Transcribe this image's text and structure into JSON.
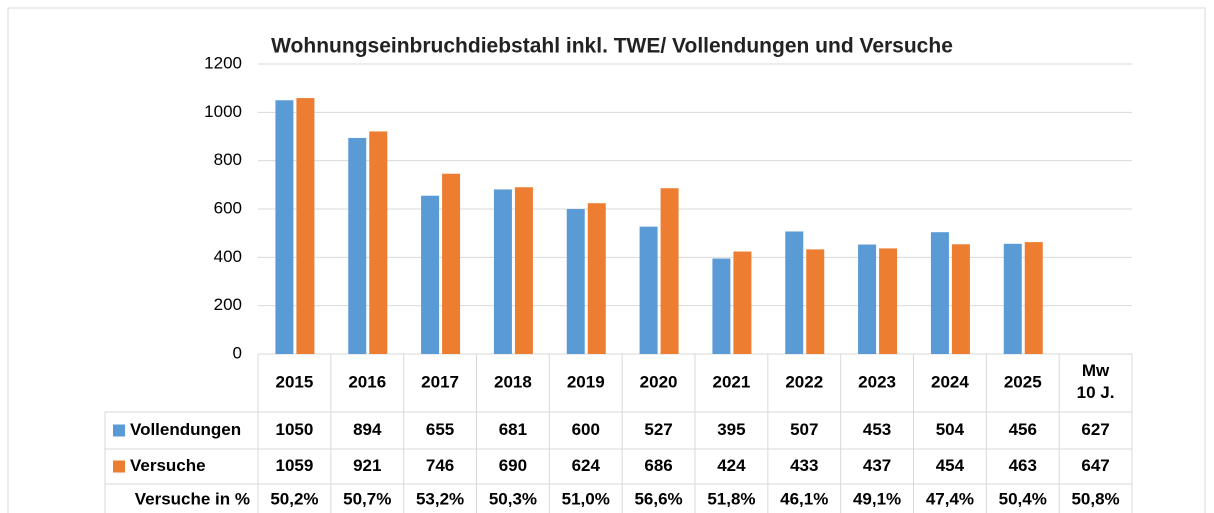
{
  "chart_data": {
    "type": "bar",
    "title": "Wohnungseinbruchdiebstahl inkl. TWE/ Vollendungen und Versuche",
    "categories": [
      "2015",
      "2016",
      "2017",
      "2018",
      "2019",
      "2020",
      "2021",
      "2022",
      "2023",
      "2024",
      "2025",
      "Mw\n10 J."
    ],
    "series": [
      {
        "name": "Vollendungen",
        "color": "#5b9bd5",
        "values": [
          1050,
          894,
          655,
          681,
          600,
          527,
          395,
          507,
          453,
          504,
          456,
          627
        ]
      },
      {
        "name": "Versuche",
        "color": "#ed7d31",
        "values": [
          1059,
          921,
          746,
          690,
          624,
          686,
          424,
          433,
          437,
          454,
          463,
          647
        ]
      }
    ],
    "percent_row": {
      "name": "Versuche in %",
      "values": [
        50.2,
        50.7,
        53.2,
        50.3,
        51.0,
        56.6,
        51.8,
        46.1,
        49.1,
        47.4,
        50.4,
        50.8
      ],
      "value_labels": [
        "50,2%",
        "50,7%",
        "53,2%",
        "50,3%",
        "51,0%",
        "56,6%",
        "51,8%",
        "46,1%",
        "49,1%",
        "47,4%",
        "50,4%",
        "50,8%"
      ]
    },
    "ylim": [
      0,
      1200
    ],
    "yticks": [
      0,
      200,
      400,
      600,
      800,
      1000,
      1200
    ],
    "grid": true
  }
}
